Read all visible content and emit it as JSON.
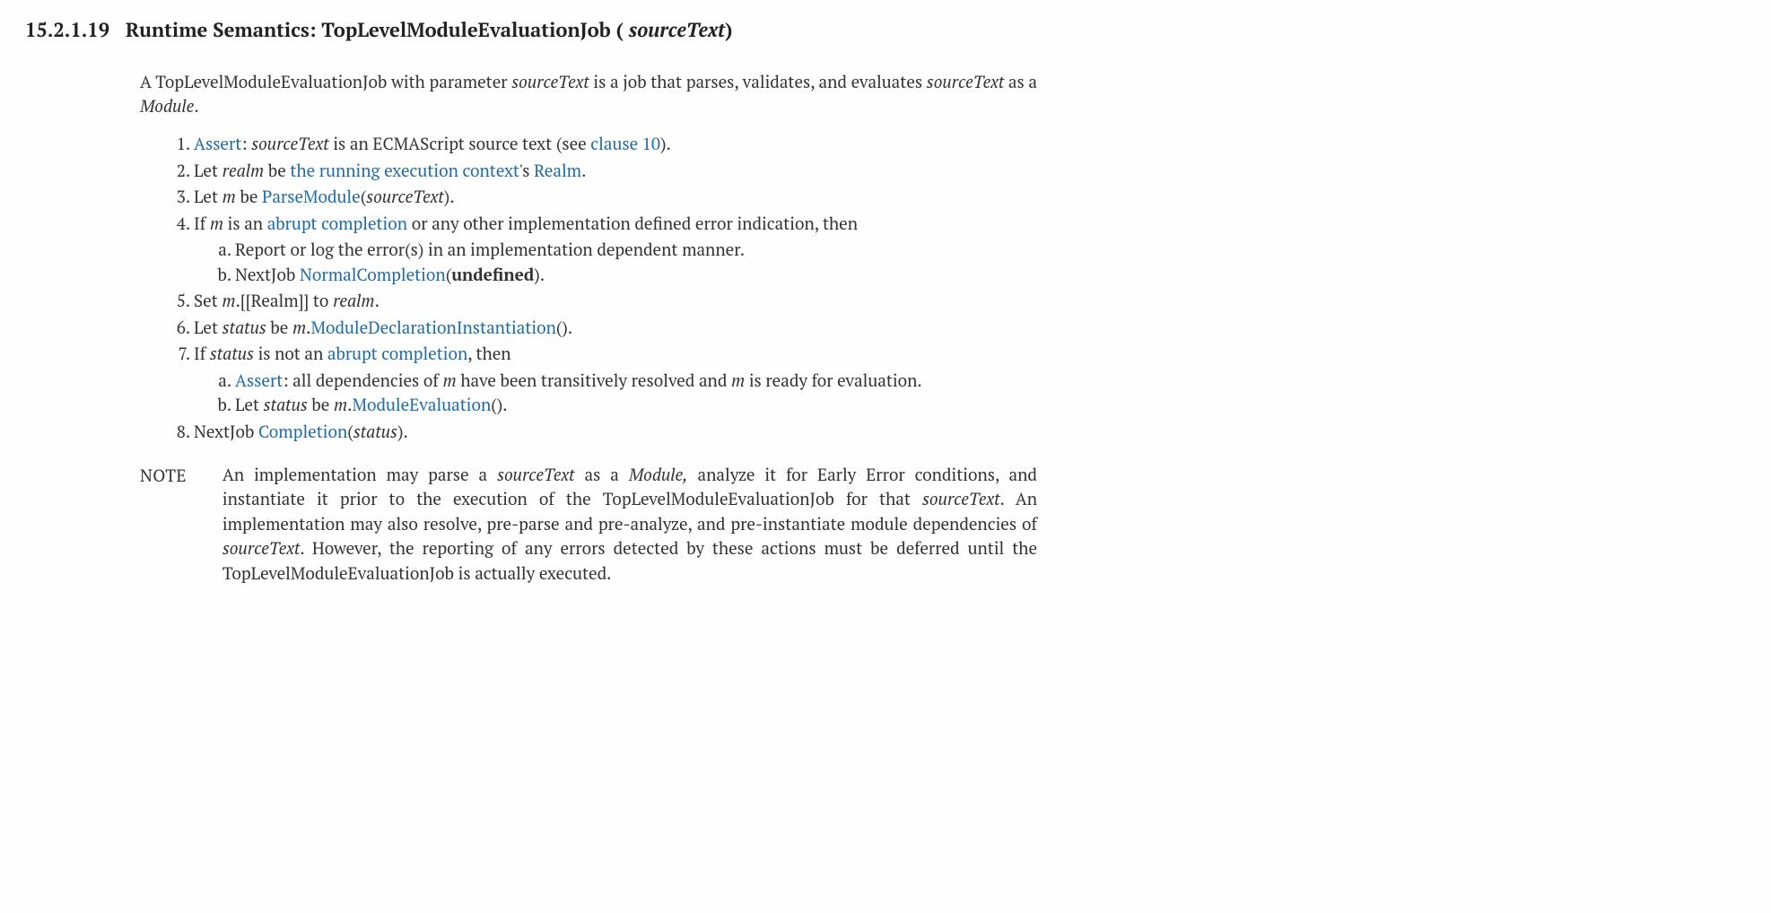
{
  "section": {
    "number": "15.2.1.19",
    "title_prefix": "Runtime Semantics: TopLevelModuleEvaluationJob ( ",
    "title_param": "sourceText",
    "title_suffix": ")"
  },
  "intro": {
    "t1": "A TopLevelModuleEvaluationJob with parameter ",
    "param": "sourceText",
    "t2": " is a job that parses, validates, and evaluates ",
    "param2": "sourceText",
    "t3": " as a ",
    "module": "Module",
    "t4": "."
  },
  "step1": {
    "assert": "Assert",
    "t1": ": ",
    "p": "sourceText",
    "t2": " is an ECMAScript source text (see ",
    "link": "clause 10",
    "t3": ")."
  },
  "step2": {
    "t1": "Let ",
    "realm": "realm",
    "t2": " be ",
    "link1": "the running execution context",
    "t3": "'s ",
    "link2": "Realm",
    "t4": "."
  },
  "step3": {
    "t1": "Let ",
    "m": "m",
    "t2": " be ",
    "link": "ParseModule",
    "t3": "(",
    "p": "sourceText",
    "t4": ")."
  },
  "step4": {
    "t1": "If ",
    "m": "m",
    "t2": " is an ",
    "link": "abrupt completion",
    "t3": " or any other implementation defined error indication, then",
    "a": "Report or log the error(s) in an implementation dependent manner.",
    "b1": "NextJob ",
    "blink": "NormalCompletion",
    "b2": "(",
    "bu": "undefined",
    "b3": ")."
  },
  "step5": {
    "t1": "Set ",
    "m": "m",
    "t2": ".[[Realm]] to ",
    "realm": "realm",
    "t3": "."
  },
  "step6": {
    "t1": "Let ",
    "status": "status",
    "t2": " be ",
    "m": "m",
    "t3": ".",
    "link": "ModuleDeclarationInstantiation",
    "t4": "()."
  },
  "step7": {
    "t1": "If ",
    "status": "status",
    "t2": " is not an ",
    "link": "abrupt completion",
    "t3": ", then",
    "a_assert": "Assert",
    "a1": ": all dependencies of ",
    "a_m1": "m",
    "a2": " have been transitively resolved and ",
    "a_m2": "m",
    "a3": " is ready for evaluation.",
    "b1": "Let ",
    "b_status": "status",
    "b2": " be ",
    "b_m": "m",
    "b3": ".",
    "blink": "ModuleEvaluation",
    "b4": "()."
  },
  "step8": {
    "t1": "NextJob ",
    "link": "Completion",
    "t2": "(",
    "status": "status",
    "t3": ")."
  },
  "note": {
    "label": "NOTE",
    "t1": "An implementation may parse a ",
    "p1": "sourceText",
    "t2": " as a ",
    "module": "Module,",
    "t3": " analyze it for Early Error conditions, and instantiate it prior to the execution of the TopLevelModuleEvaluationJob for that ",
    "p2": "sourceText",
    "t4": ". An implementation may also resolve, pre-parse and pre-analyze, and pre-instantiate module dependencies of ",
    "p3": "sourceText",
    "t5": ". However, the reporting of any errors detected by these actions must be deferred until the TopLevelModuleEvaluationJob is actually executed."
  }
}
